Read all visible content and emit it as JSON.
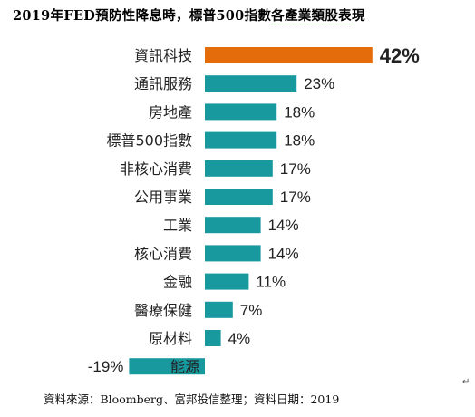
{
  "chart_data": {
    "type": "bar",
    "orientation": "horizontal",
    "title": "2019年FED預防性降息時，標普500指數各產業類股表現",
    "categories": [
      "資訊科技",
      "通訊服務",
      "房地產",
      "標普500指數",
      "非核心消費",
      "公用事業",
      "工業",
      "核心消費",
      "金融",
      "醫療保健",
      "原材料",
      "能源"
    ],
    "values": [
      42,
      23,
      18,
      18,
      17,
      17,
      14,
      14,
      11,
      7,
      4,
      -19
    ],
    "value_labels": [
      "42%",
      "23%",
      "18%",
      "18%",
      "17%",
      "17%",
      "14%",
      "14%",
      "11%",
      "7%",
      "4%",
      "-19%"
    ],
    "highlight_index": 0,
    "colors": {
      "bar": "#17999e",
      "highlight": "#e46c0a",
      "highlight_label": "#c00000"
    },
    "grid": false,
    "legend": "none",
    "source": "資料來源：Bloomberg、富邦投信整理；資料日期：2019"
  },
  "paragraph_mark": "↵"
}
